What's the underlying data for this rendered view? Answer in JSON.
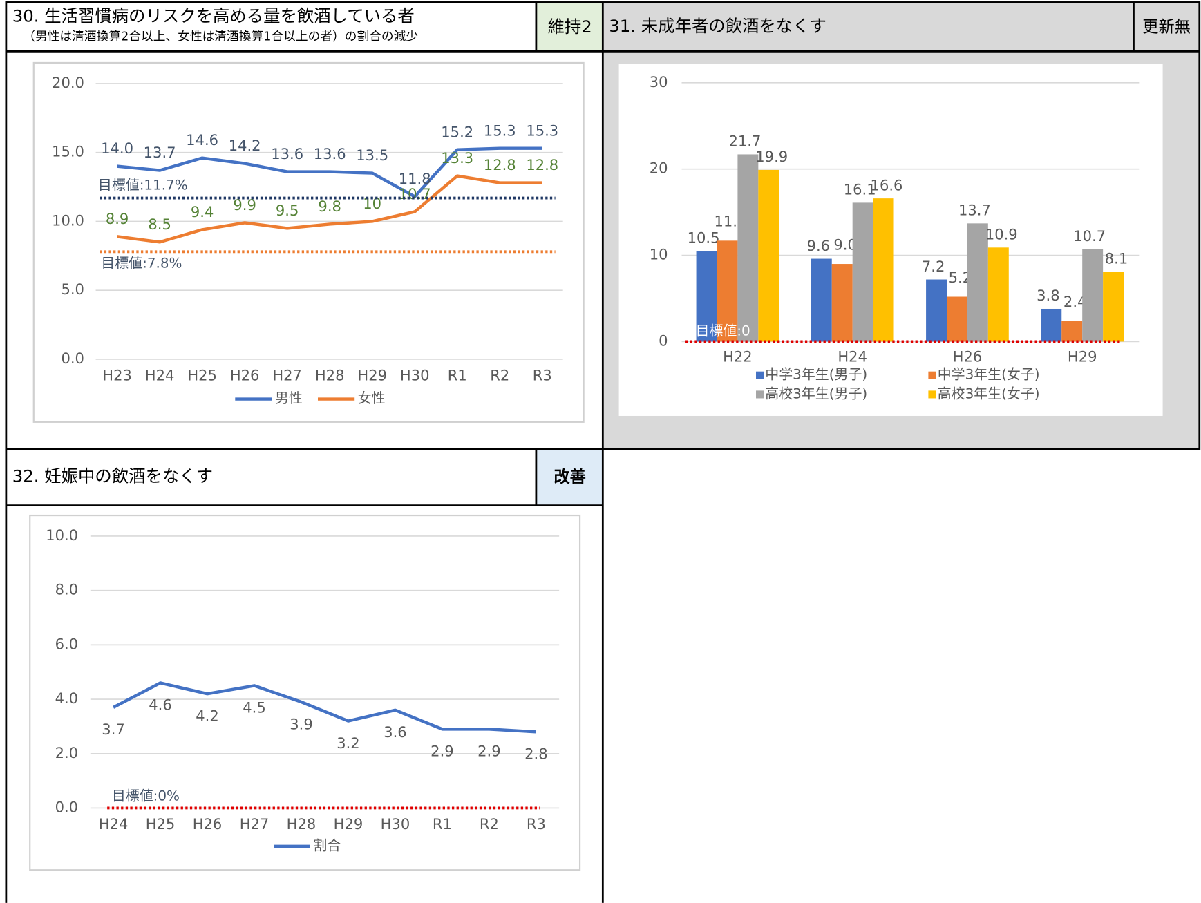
{
  "panels": [
    {
      "title": "30. 生活習慣病のリスクを高める量を飲酒している者",
      "subtitle": "（男性は清酒換算2合以上、女性は清酒換算1合以上の者）の割合の減少",
      "status": "維持2"
    },
    {
      "title": "31. 未成年者の飲酒をなくす",
      "status": "更新無"
    },
    {
      "title": "32. 妊娠中の飲酒をなくす",
      "status": "改善"
    }
  ],
  "chart_data": [
    {
      "type": "line",
      "categories": [
        "H23",
        "H24",
        "H25",
        "H26",
        "H27",
        "H28",
        "H29",
        "H30",
        "R1",
        "R2",
        "R3"
      ],
      "series": [
        {
          "name": "男性",
          "color": "#4472c4",
          "label_color": "#44546a",
          "values": [
            14.0,
            13.7,
            14.6,
            14.2,
            13.6,
            13.6,
            13.5,
            11.8,
            15.2,
            15.3,
            15.3
          ],
          "value_labels": [
            "14.0",
            "13.7",
            "14.6",
            "14.2",
            "13.6",
            "13.6",
            "13.5",
            "11.8",
            "15.2",
            "15.3",
            "15.3"
          ]
        },
        {
          "name": "女性",
          "color": "#ed7d31",
          "label_color": "#548235",
          "values": [
            8.9,
            8.5,
            9.4,
            9.9,
            9.5,
            9.8,
            10,
            10.7,
            13.3,
            12.8,
            12.8
          ]
        }
      ],
      "ylim": [
        0,
        20
      ],
      "yticks": [
        {
          "value": 0,
          "label": "0.0"
        },
        {
          "value": 5,
          "label": "5.0"
        },
        {
          "value": 10,
          "label": "10.0"
        },
        {
          "value": 15,
          "label": "15.0"
        },
        {
          "value": 20,
          "label": "20.0"
        }
      ],
      "grid": true,
      "legend": "bottom",
      "annotations": [
        {
          "label": "目標値:11.7%",
          "value": 11.7,
          "color": "#203864"
        },
        {
          "label": "目標値:7.8%",
          "value": 7.8,
          "color": "#ed7d31"
        }
      ]
    },
    {
      "type": "bar",
      "categories": [
        "H22",
        "H24",
        "H26",
        "H29"
      ],
      "series": [
        {
          "name": "中学3年生(男子)",
          "color": "#4472c4",
          "values": [
            10.5,
            9.6,
            7.2,
            3.8
          ]
        },
        {
          "name": "中学3年生(女子)",
          "color": "#ed7d31",
          "values": [
            11.7,
            9.0,
            5.2,
            2.4
          ],
          "value_labels": [
            "11.7",
            "9.0",
            "5.2",
            "2.4"
          ]
        },
        {
          "name": "高校3年生(男子)",
          "color": "#a5a5a5",
          "values": [
            21.7,
            16.1,
            13.7,
            10.7
          ]
        },
        {
          "name": "高校3年生(女子)",
          "color": "#ffc000",
          "values": [
            19.9,
            16.6,
            10.9,
            8.1
          ]
        }
      ],
      "ylim": [
        0,
        30
      ],
      "yticks": [
        0,
        10,
        20,
        30
      ],
      "grid": true,
      "legend": "bottom",
      "annotations": [
        {
          "label": "目標値:0",
          "value": 0,
          "color": "#e00000"
        }
      ]
    },
    {
      "type": "line",
      "categories": [
        "H24",
        "H25",
        "H26",
        "H27",
        "H28",
        "H29",
        "H30",
        "R1",
        "R2",
        "R3"
      ],
      "series": [
        {
          "name": "割合",
          "color": "#4472c4",
          "label_color": "#595959",
          "values": [
            3.7,
            4.6,
            4.2,
            4.5,
            3.9,
            3.2,
            3.6,
            2.9,
            2.9,
            2.8
          ]
        }
      ],
      "ylim": [
        0,
        10
      ],
      "yticks": [
        {
          "value": 0,
          "label": "0.0"
        },
        {
          "value": 2,
          "label": "2.0"
        },
        {
          "value": 4,
          "label": "4.0"
        },
        {
          "value": 6,
          "label": "6.0"
        },
        {
          "value": 8,
          "label": "8.0"
        },
        {
          "value": 10,
          "label": "10.0"
        }
      ],
      "grid": true,
      "legend": "bottom",
      "annotations": [
        {
          "label": "目標値:0%",
          "value": 0,
          "color": "#e00000"
        }
      ]
    }
  ]
}
